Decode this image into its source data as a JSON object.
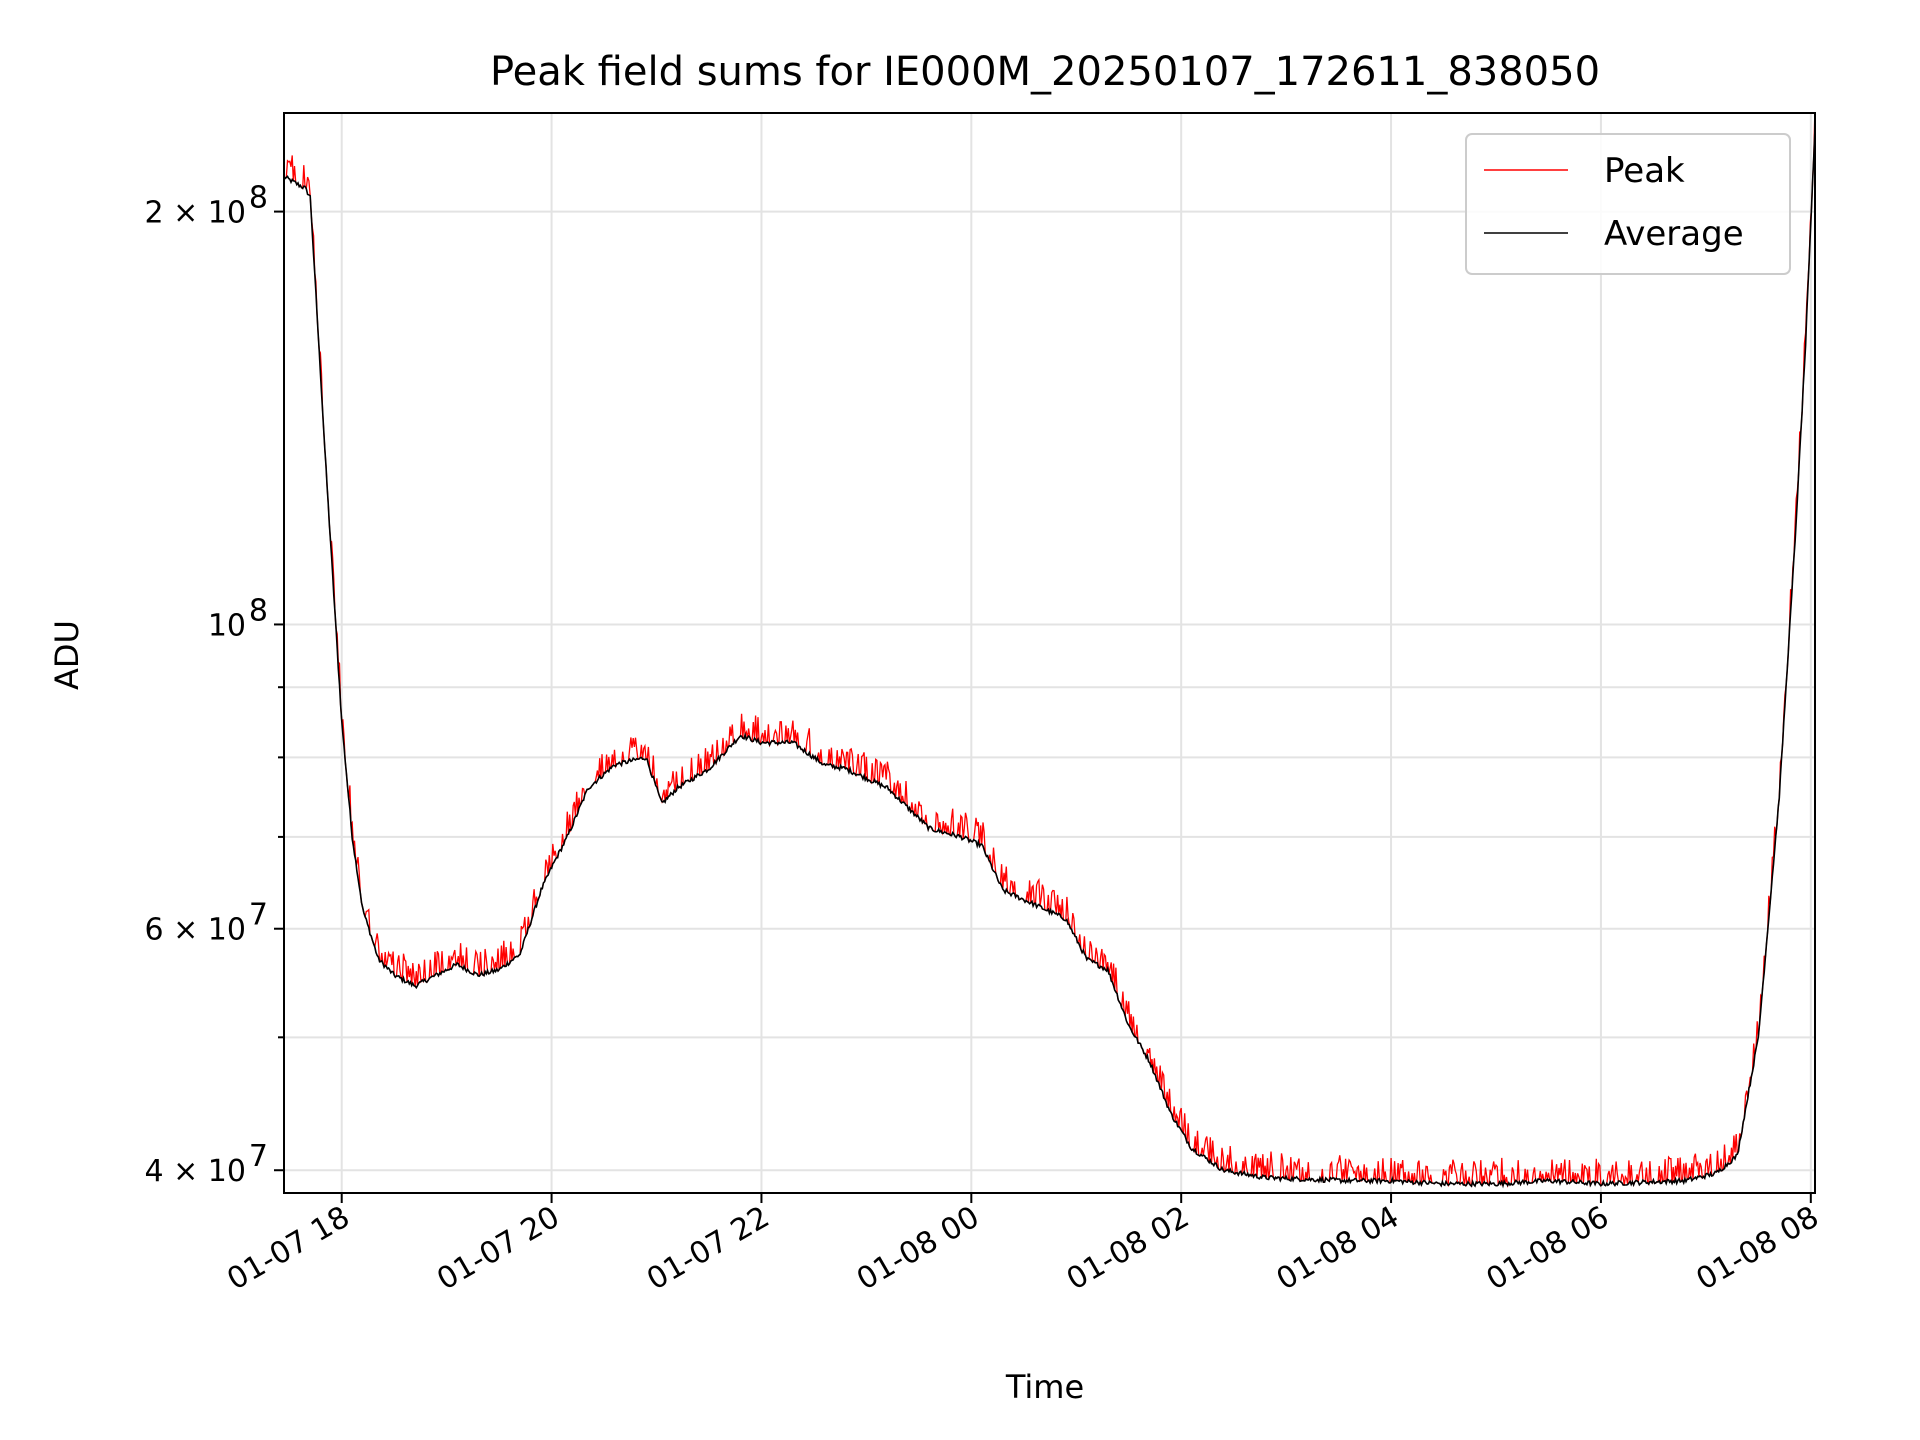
{
  "chart_data": {
    "type": "line",
    "title": "Peak field sums for IE000M_20250107_172611_838050",
    "xlabel": "Time",
    "ylabel": "ADU",
    "x_tick_labels": [
      "01-07 18",
      "01-07 20",
      "01-07 22",
      "01-08 00",
      "01-08 02",
      "01-08 04",
      "01-08 06",
      "01-08 08"
    ],
    "x_ticks_hours": [
      0,
      2,
      4,
      6,
      8,
      10,
      12,
      14
    ],
    "x_start_hours": -0.55,
    "x_end_hours": 14.04,
    "y_scale": "log",
    "ylim": [
      38500000,
      236000000
    ],
    "y_ticks": [
      {
        "value": 40000000,
        "label": "4 × 10",
        "exp": "7"
      },
      {
        "value": 60000000,
        "label": "6 × 10",
        "exp": "7"
      },
      {
        "value": 100000000,
        "label": "10",
        "exp": "8"
      },
      {
        "value": 200000000,
        "label": "2 × 10",
        "exp": "8"
      }
    ],
    "y_minor_ticks": [
      50000000,
      70000000,
      80000000,
      90000000,
      300000000
    ],
    "grid": true,
    "legend_position": "upper right",
    "series": [
      {
        "name": "Peak",
        "color": "#ff0000",
        "peak_offset": 0.03
      },
      {
        "name": "Average",
        "color": "#000000"
      }
    ],
    "average_profile": {
      "x_hours": [
        -0.55,
        -0.35,
        -0.3,
        -0.15,
        0.0,
        0.1,
        0.2,
        0.35,
        0.5,
        0.7,
        0.9,
        1.1,
        1.3,
        1.5,
        1.7,
        1.9,
        2.0,
        2.15,
        2.35,
        2.6,
        2.9,
        3.05,
        3.2,
        3.5,
        3.8,
        4.0,
        4.3,
        4.6,
        4.8,
        5.2,
        5.6,
        5.9,
        6.1,
        6.3,
        6.6,
        6.9,
        7.1,
        7.3,
        7.5,
        7.7,
        7.9,
        8.1,
        8.4,
        8.8,
        9.2,
        9.6,
        10.0,
        10.5,
        11.0,
        11.5,
        12.0,
        12.4,
        12.8,
        13.1,
        13.3,
        13.5,
        13.7,
        13.85,
        13.95,
        14.04
      ],
      "values": [
        212000000,
        208000000,
        205000000,
        130000000,
        85000000,
        70000000,
        62000000,
        57000000,
        55500000,
        54500000,
        55500000,
        56500000,
        55500000,
        56000000,
        57500000,
        64000000,
        66500000,
        70000000,
        76000000,
        79000000,
        80000000,
        74000000,
        76000000,
        78500000,
        83000000,
        82000000,
        82000000,
        79000000,
        78500000,
        76000000,
        71000000,
        70000000,
        69000000,
        64000000,
        62500000,
        61000000,
        57000000,
        56000000,
        51000000,
        48000000,
        44000000,
        41500000,
        40000000,
        39500000,
        39400000,
        39300000,
        39300000,
        39100000,
        39100000,
        39300000,
        39100000,
        39200000,
        39300000,
        39800000,
        41000000,
        50000000,
        75000000,
        115000000,
        160000000,
        230000000
      ]
    }
  }
}
